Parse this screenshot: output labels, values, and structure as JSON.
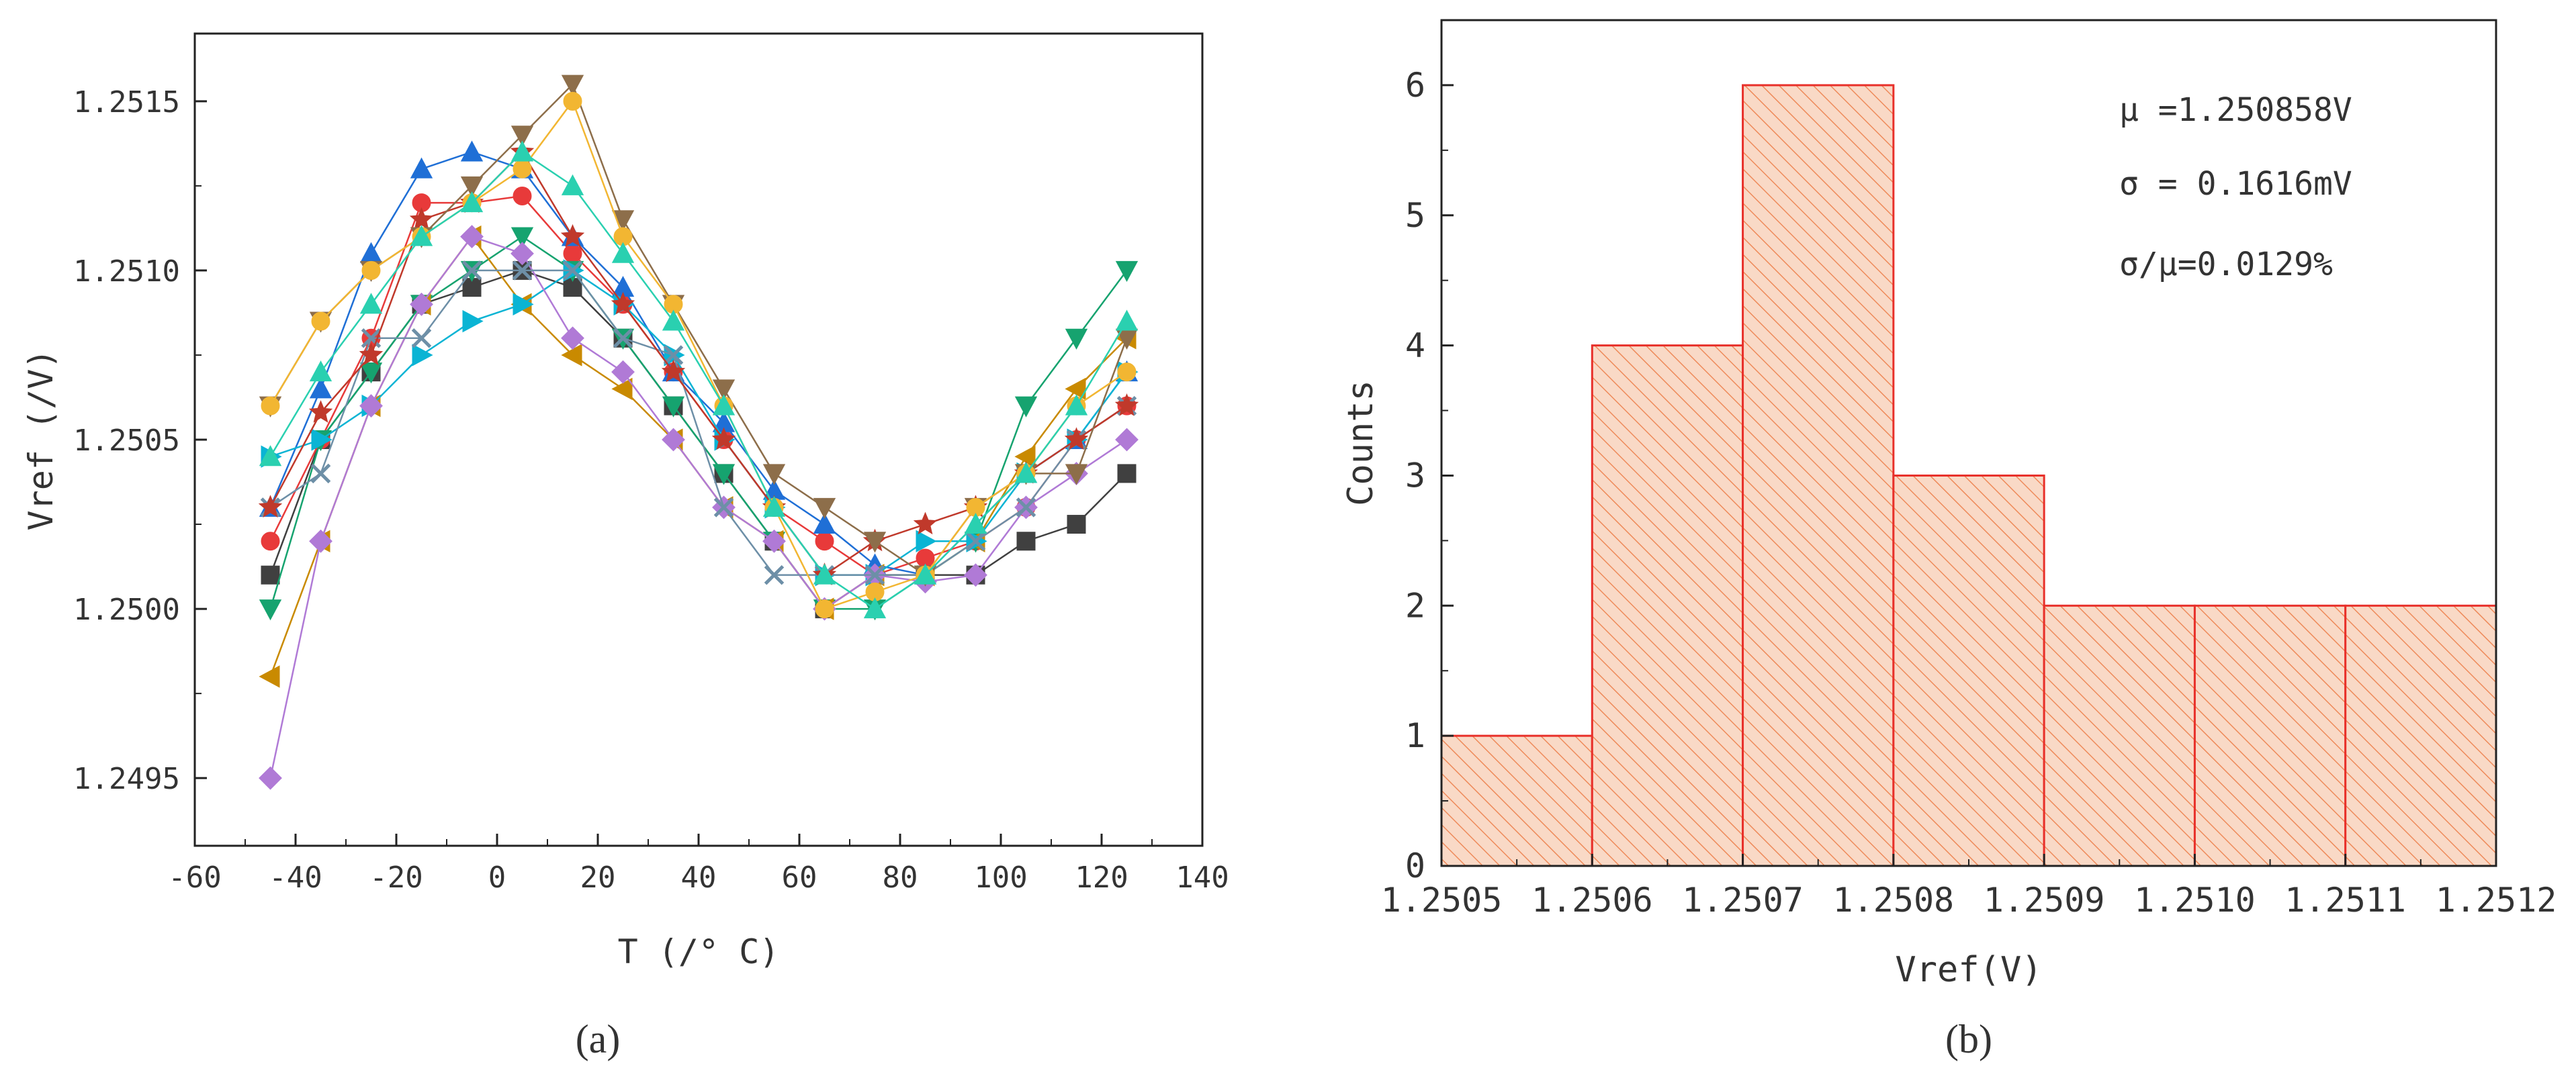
{
  "chart_data": [
    {
      "panel": "(a)",
      "type": "line",
      "xlabel": "T (/° C)",
      "ylabel": "Vref (/V)",
      "xlim": [
        -60,
        140
      ],
      "ylim": [
        1.2493,
        1.2517
      ],
      "x_ticks": [
        "-60",
        "-40",
        "-20",
        "0",
        "20",
        "40",
        "60",
        "80",
        "100",
        "120",
        "140"
      ],
      "y_ticks": [
        "1.2495",
        "1.2500",
        "1.2505",
        "1.2510",
        "1.2515"
      ],
      "x": [
        -45,
        -35,
        -25,
        -15,
        -5,
        5,
        15,
        25,
        35,
        45,
        55,
        65,
        75,
        85,
        95,
        105,
        115,
        125
      ],
      "series": [
        {
          "color": "#404040",
          "marker": "square",
          "values": [
            1.2501,
            1.2505,
            1.2507,
            1.2509,
            1.25095,
            1.251,
            1.25095,
            1.2508,
            1.2506,
            1.2504,
            1.2502,
            1.25,
            1.2501,
            1.2501,
            1.2501,
            1.2502,
            1.25025,
            1.2504
          ]
        },
        {
          "color": "#e83a3a",
          "marker": "circle",
          "values": [
            1.2502,
            1.2505,
            1.2508,
            1.2512,
            1.2512,
            1.25122,
            1.25105,
            1.2509,
            1.2507,
            1.2505,
            1.2503,
            1.2502,
            1.2501,
            1.25015,
            1.2502,
            1.2503,
            1.2505,
            1.2506
          ]
        },
        {
          "color": "#1f6fd6",
          "marker": "triangle-up",
          "values": [
            1.2503,
            1.25065,
            1.25105,
            1.2513,
            1.25135,
            1.2513,
            1.2511,
            1.25095,
            1.2507,
            1.25055,
            1.25035,
            1.25025,
            1.25013,
            1.2501,
            1.25025,
            1.2504,
            1.2505,
            1.2507
          ]
        },
        {
          "color": "#16a36f",
          "marker": "triangle-down",
          "values": [
            1.25,
            1.2505,
            1.2507,
            1.2509,
            1.251,
            1.2511,
            1.251,
            1.2508,
            1.2506,
            1.2504,
            1.2502,
            1.25,
            1.25,
            1.2501,
            1.2502,
            1.2506,
            1.2508,
            1.251
          ]
        },
        {
          "color": "#c98a00",
          "marker": "triangle-left",
          "values": [
            1.2498,
            1.2502,
            1.2506,
            1.2509,
            1.2511,
            1.2509,
            1.25075,
            1.25065,
            1.2505,
            1.2503,
            1.2502,
            1.25,
            1.2501,
            1.2501,
            1.2502,
            1.25045,
            1.25065,
            1.2508
          ]
        },
        {
          "color": "#0ab4d4",
          "marker": "triangle-right",
          "values": [
            1.25045,
            1.2505,
            1.2506,
            1.25075,
            1.25085,
            1.2509,
            1.251,
            1.2509,
            1.25075,
            1.2505,
            1.2503,
            1.2501,
            1.2501,
            1.2502,
            1.2502,
            1.2504,
            1.2505,
            1.2507
          ]
        },
        {
          "color": "#b07ad6",
          "marker": "diamond",
          "values": [
            1.2495,
            1.2502,
            1.2506,
            1.2509,
            1.2511,
            1.25105,
            1.2508,
            1.2507,
            1.2505,
            1.2503,
            1.2502,
            1.25,
            1.2501,
            1.25008,
            1.2501,
            1.2503,
            1.2504,
            1.2505
          ]
        },
        {
          "color": "#6d8fa7",
          "marker": "x",
          "values": [
            1.2503,
            1.2504,
            1.2508,
            1.2508,
            1.251,
            1.251,
            1.251,
            1.2508,
            1.25075,
            1.2503,
            1.2501,
            1.2501,
            1.2501,
            1.2501,
            1.2502,
            1.2503,
            1.2505,
            1.2506
          ]
        },
        {
          "color": "#c0392b",
          "marker": "star",
          "values": [
            1.2503,
            1.25058,
            1.25075,
            1.25115,
            1.2512,
            1.25135,
            1.2511,
            1.2509,
            1.2507,
            1.2505,
            1.2503,
            1.2501,
            1.2502,
            1.25025,
            1.2503,
            1.2504,
            1.2505,
            1.2506
          ]
        },
        {
          "color": "#8d6e4a",
          "marker": "triangle-down",
          "values": [
            1.2506,
            1.25085,
            1.251,
            1.2511,
            1.25125,
            1.2514,
            1.25155,
            1.25115,
            1.2509,
            1.25065,
            1.2504,
            1.2503,
            1.2502,
            1.2501,
            1.2503,
            1.2504,
            1.2504,
            1.2508
          ]
        },
        {
          "color": "#f2b632",
          "marker": "circle",
          "values": [
            1.2506,
            1.25085,
            1.251,
            1.2511,
            1.2512,
            1.2513,
            1.2515,
            1.2511,
            1.2509,
            1.2506,
            1.2503,
            1.25,
            1.25005,
            1.2501,
            1.2503,
            1.2504,
            1.2506,
            1.2507
          ]
        },
        {
          "color": "#2ad0b0",
          "marker": "triangle-up",
          "values": [
            1.25045,
            1.2507,
            1.2509,
            1.2511,
            1.2512,
            1.25135,
            1.25125,
            1.25105,
            1.25085,
            1.2506,
            1.2503,
            1.2501,
            1.25,
            1.2501,
            1.25025,
            1.2504,
            1.2506,
            1.25085
          ]
        }
      ]
    },
    {
      "panel": "(b)",
      "type": "bar",
      "subtype": "histogram",
      "xlabel": "Vref(V)",
      "ylabel": "Counts",
      "x_ticks": [
        "1.2505",
        "1.2506",
        "1.2507",
        "1.2508",
        "1.2509",
        "1.2510",
        "1.2511",
        "1.2512"
      ],
      "y_ticks": [
        "0",
        "1",
        "2",
        "3",
        "4",
        "5",
        "6"
      ],
      "xlim": [
        1.2505,
        1.2512
      ],
      "ylim": [
        0,
        6.5
      ],
      "bins": [
        {
          "start": 1.2505,
          "end": 1.2506,
          "count": 1
        },
        {
          "start": 1.2506,
          "end": 1.2507,
          "count": 4
        },
        {
          "start": 1.2507,
          "end": 1.2508,
          "count": 6
        },
        {
          "start": 1.2508,
          "end": 1.2509,
          "count": 3
        },
        {
          "start": 1.2509,
          "end": 1.251,
          "count": 2
        },
        {
          "start": 1.251,
          "end": 1.2511,
          "count": 2
        },
        {
          "start": 1.2511,
          "end": 1.2512,
          "count": 2
        }
      ],
      "annotations": [
        "μ =1.250858V",
        "σ = 0.1616mV",
        "σ/μ=0.0129%"
      ],
      "bar_edge_color": "#e8302a",
      "bar_fill_color": "#f9d9c6",
      "hatch_color": "#ee8a5a"
    }
  ]
}
